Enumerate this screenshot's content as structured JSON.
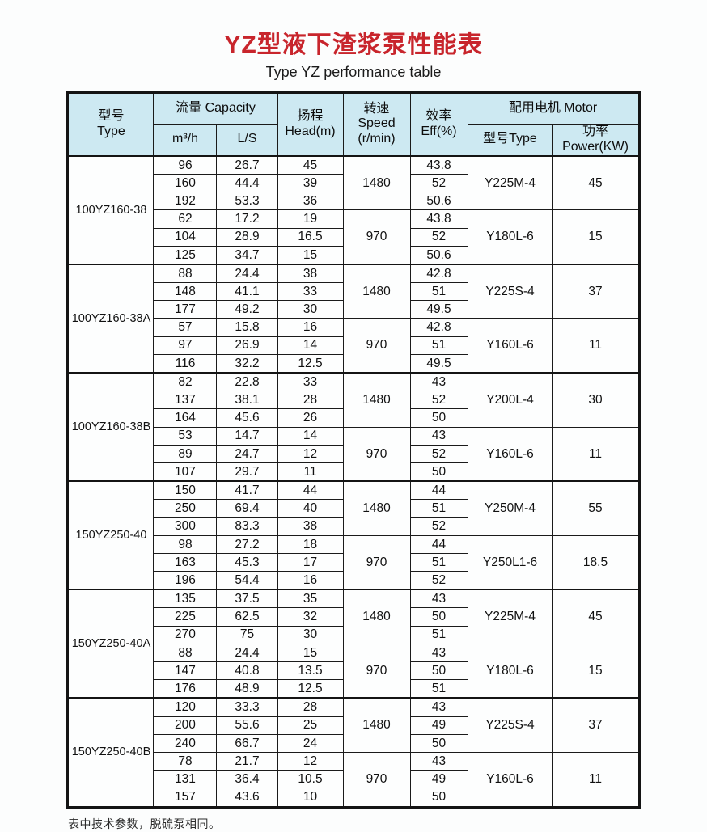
{
  "title": "YZ型液下渣浆泵性能表",
  "subtitle": "Type YZ performance table",
  "footnote": "表中技术参数，脱硫泵相同。",
  "colors": {
    "title_red": "#c8252c",
    "header_bg": "#cde9f2",
    "border_black": "#141414"
  },
  "table": {
    "headers": {
      "model_cn": "型号",
      "model_en": "Type",
      "capacity": "流量 Capacity",
      "unit_m3h": "m³/h",
      "unit_ls": "L/S",
      "head_cn": "扬程",
      "head_en": "Head(m)",
      "speed_cn": "转速",
      "speed_en": "Speed",
      "speed_unit": "(r/min)",
      "eff_cn": "效率",
      "eff_en": "Eff(%)",
      "motor": "配用电机 Motor",
      "motor_type": "型号Type",
      "motor_power": "功率Power(KW)"
    },
    "groups": [
      {
        "model": "100YZ160-38",
        "halves": [
          {
            "speed": "1480",
            "motor": "Y225M-4",
            "power": "45",
            "rows": [
              [
                "96",
                "26.7",
                "45",
                "43.8"
              ],
              [
                "160",
                "44.4",
                "39",
                "52"
              ],
              [
                "192",
                "53.3",
                "36",
                "50.6"
              ]
            ]
          },
          {
            "speed": "970",
            "motor": "Y180L-6",
            "power": "15",
            "rows": [
              [
                "62",
                "17.2",
                "19",
                "43.8"
              ],
              [
                "104",
                "28.9",
                "16.5",
                "52"
              ],
              [
                "125",
                "34.7",
                "15",
                "50.6"
              ]
            ]
          }
        ]
      },
      {
        "model": "100YZ160-38A",
        "halves": [
          {
            "speed": "1480",
            "motor": "Y225S-4",
            "power": "37",
            "rows": [
              [
                "88",
                "24.4",
                "38",
                "42.8"
              ],
              [
                "148",
                "41.1",
                "33",
                "51"
              ],
              [
                "177",
                "49.2",
                "30",
                "49.5"
              ]
            ]
          },
          {
            "speed": "970",
            "motor": "Y160L-6",
            "power": "11",
            "rows": [
              [
                "57",
                "15.8",
                "16",
                "42.8"
              ],
              [
                "97",
                "26.9",
                "14",
                "51"
              ],
              [
                "116",
                "32.2",
                "12.5",
                "49.5"
              ]
            ]
          }
        ]
      },
      {
        "model": "100YZ160-38B",
        "halves": [
          {
            "speed": "1480",
            "motor": "Y200L-4",
            "power": "30",
            "rows": [
              [
                "82",
                "22.8",
                "33",
                "43"
              ],
              [
                "137",
                "38.1",
                "28",
                "52"
              ],
              [
                "164",
                "45.6",
                "26",
                "50"
              ]
            ]
          },
          {
            "speed": "970",
            "motor": "Y160L-6",
            "power": "11",
            "rows": [
              [
                "53",
                "14.7",
                "14",
                "43"
              ],
              [
                "89",
                "24.7",
                "12",
                "52"
              ],
              [
                "107",
                "29.7",
                "11",
                "50"
              ]
            ]
          }
        ]
      },
      {
        "model": "150YZ250-40",
        "halves": [
          {
            "speed": "1480",
            "motor": "Y250M-4",
            "power": "55",
            "rows": [
              [
                "150",
                "41.7",
                "44",
                "44"
              ],
              [
                "250",
                "69.4",
                "40",
                "51"
              ],
              [
                "300",
                "83.3",
                "38",
                "52"
              ]
            ]
          },
          {
            "speed": "970",
            "motor": "Y250L1-6",
            "power": "18.5",
            "rows": [
              [
                "98",
                "27.2",
                "18",
                "44"
              ],
              [
                "163",
                "45.3",
                "17",
                "51"
              ],
              [
                "196",
                "54.4",
                "16",
                "52"
              ]
            ]
          }
        ]
      },
      {
        "model": "150YZ250-40A",
        "halves": [
          {
            "speed": "1480",
            "motor": "Y225M-4",
            "power": "45",
            "rows": [
              [
                "135",
                "37.5",
                "35",
                "43"
              ],
              [
                "225",
                "62.5",
                "32",
                "50"
              ],
              [
                "270",
                "75",
                "30",
                "51"
              ]
            ]
          },
          {
            "speed": "970",
            "motor": "Y180L-6",
            "power": "15",
            "rows": [
              [
                "88",
                "24.4",
                "15",
                "43"
              ],
              [
                "147",
                "40.8",
                "13.5",
                "50"
              ],
              [
                "176",
                "48.9",
                "12.5",
                "51"
              ]
            ]
          }
        ]
      },
      {
        "model": "150YZ250-40B",
        "halves": [
          {
            "speed": "1480",
            "motor": "Y225S-4",
            "power": "37",
            "rows": [
              [
                "120",
                "33.3",
                "28",
                "43"
              ],
              [
                "200",
                "55.6",
                "25",
                "49"
              ],
              [
                "240",
                "66.7",
                "24",
                "50"
              ]
            ]
          },
          {
            "speed": "970",
            "motor": "Y160L-6",
            "power": "11",
            "rows": [
              [
                "78",
                "21.7",
                "12",
                "43"
              ],
              [
                "131",
                "36.4",
                "10.5",
                "49"
              ],
              [
                "157",
                "43.6",
                "10",
                "50"
              ]
            ]
          }
        ]
      }
    ]
  }
}
